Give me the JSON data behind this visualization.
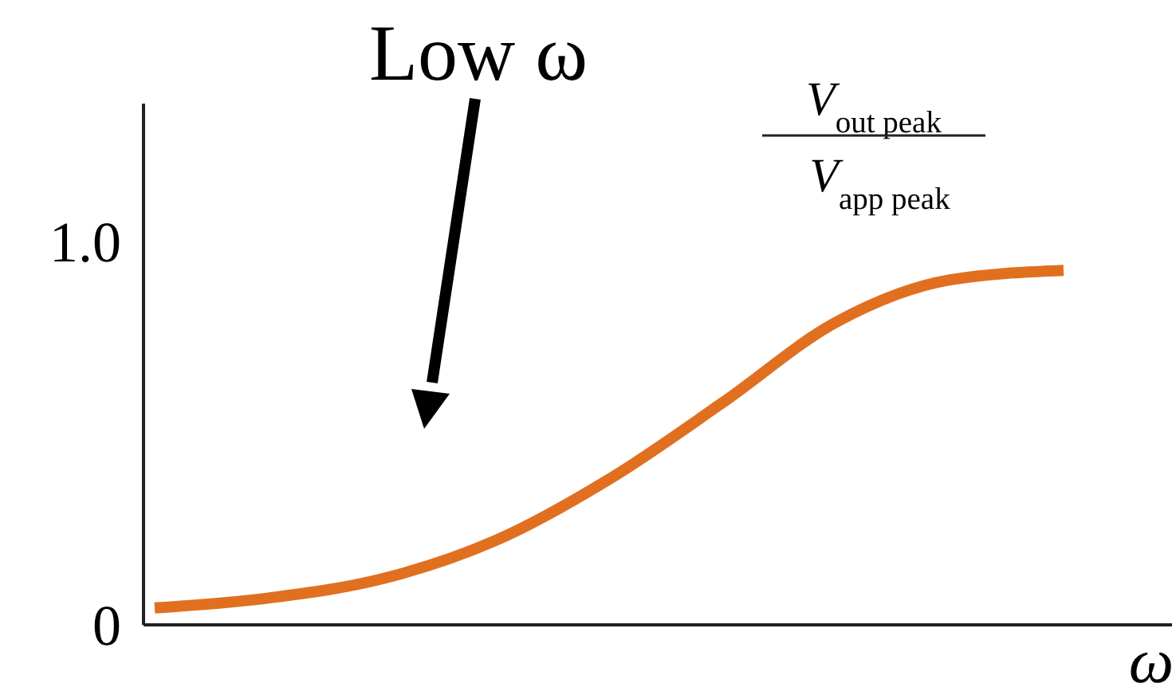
{
  "chart_data": {
    "type": "line",
    "categories": [
      null,
      null,
      null,
      null,
      null,
      null,
      null,
      null,
      null
    ],
    "series": [
      {
        "color": "#e07020",
        "values": [
          0.044,
          0.07,
          0.12,
          0.22,
          0.38,
          0.58,
          0.79,
          0.9,
          0.925
        ]
      }
    ],
    "ylim": [
      0,
      1.36
    ],
    "yticks": [
      0,
      {
        "value": 1,
        "label": "1.0"
      }
    ],
    "xlabel": "ω",
    "ylabel": "V$_{out peak}$ V$_{app peak}$",
    "annotations": [
      "Low ω"
    ],
    "grid": false,
    "marker": "none",
    "line_style": "solid"
  }
}
